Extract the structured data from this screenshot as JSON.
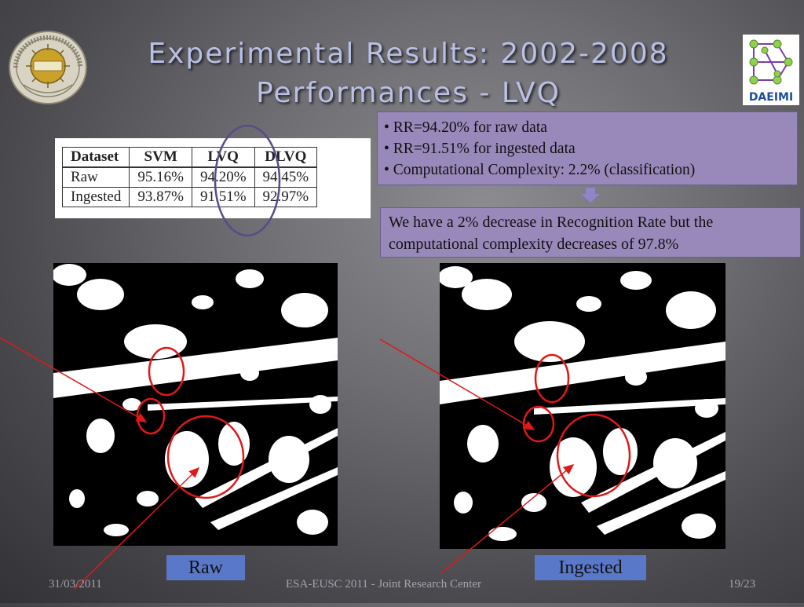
{
  "slide": {
    "title_line1": "Experimental Results: 2002-2008",
    "title_line2": "Performances - LVQ",
    "seal_text": "UNIVERSITÀ DI CASSINO · 1979 · SOL PER NOCTEM",
    "logo_text": "DAEIMI"
  },
  "table": {
    "headers": [
      "Dataset",
      "SVM",
      "LVQ",
      "DLVQ"
    ],
    "rows": [
      [
        "Raw",
        "95.16%",
        "94.20%",
        "94.45%"
      ],
      [
        "Ingested",
        "93.87%",
        "91.51%",
        "92.97%"
      ]
    ]
  },
  "bullets": [
    "• RR=94.20% for raw data",
    "• RR=91.51% for ingested data",
    "• Computational Complexity: 2.2% (classification)"
  ],
  "conclusion": "We have a 2% decrease in Recognition Rate but the computational complexity decreases of 97.8%",
  "images": {
    "raw_caption": "Raw",
    "ingested_caption": "Ingested"
  },
  "footer": {
    "date": "31/03/2011",
    "center": "ESA-EUSC 2011 - Joint Research Center",
    "page": "19/23"
  },
  "colors": {
    "title": "#b9c0e4",
    "box": "#9889ba",
    "caption_box": "#5a78c8",
    "annotation": "#e01818",
    "highlight_ellipse": "#5a4a8a"
  }
}
